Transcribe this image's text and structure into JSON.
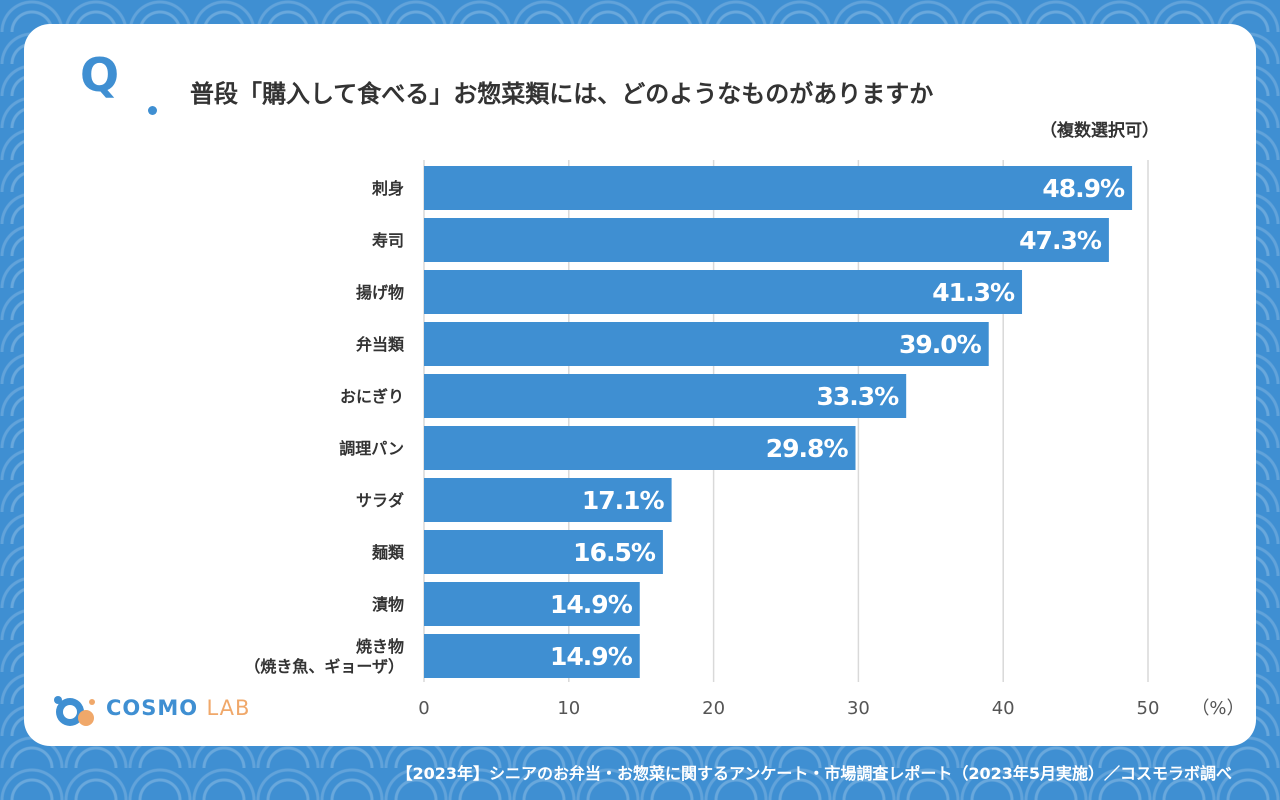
{
  "question": {
    "mark": "Q",
    "text": "普段「購入して食べる」お惣菜類には、どのようなものがありますか",
    "note": "（複数選択可）"
  },
  "logo": {
    "brand": "COSMO",
    "suffix": "LAB"
  },
  "footer": "【2023年】シニアのお弁当・お惣菜に関するアンケート・市場調査レポート（2023年5月実施）／コスモラボ調べ",
  "colors": {
    "bar": "#3f8fd2",
    "background": "#3f8fd2",
    "card": "#ffffff",
    "grid": "#d9d9d9"
  },
  "chart_data": {
    "type": "bar",
    "orientation": "horizontal",
    "categories": [
      [
        "刺身"
      ],
      [
        "寿司"
      ],
      [
        "揚げ物"
      ],
      [
        "弁当類"
      ],
      [
        "おにぎり"
      ],
      [
        "調理パン"
      ],
      [
        "サラダ"
      ],
      [
        "麺類"
      ],
      [
        "漬物"
      ],
      [
        "焼き物",
        "（焼き魚、ギョーザ）"
      ]
    ],
    "values": [
      48.9,
      47.3,
      41.3,
      39.0,
      33.3,
      29.8,
      17.1,
      16.5,
      14.9,
      14.9
    ],
    "value_labels": [
      "48.9%",
      "47.3%",
      "41.3%",
      "39.0%",
      "33.3%",
      "29.8%",
      "17.1%",
      "16.5%",
      "14.9%",
      "14.9%"
    ],
    "xlim": [
      0,
      50
    ],
    "ticks": [
      0,
      10,
      20,
      30,
      40,
      50
    ],
    "tick_labels": [
      "0",
      "10",
      "20",
      "30",
      "40",
      "50"
    ],
    "unit_label": "（%）",
    "grid": true
  }
}
